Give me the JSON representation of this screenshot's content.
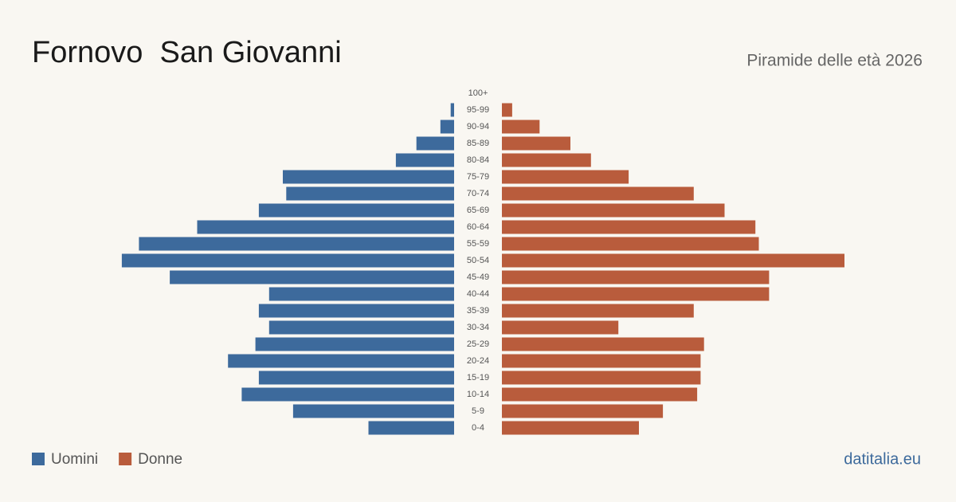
{
  "chart_data": {
    "type": "pyramid",
    "title": "Fornovo  San Giovanni",
    "subtitle": "Piramide delle età 2026",
    "source": "datitalia.eu",
    "categories": [
      "100+",
      "95-99",
      "90-94",
      "85-89",
      "80-84",
      "75-79",
      "70-74",
      "65-69",
      "60-64",
      "55-59",
      "50-54",
      "45-49",
      "40-44",
      "35-39",
      "30-34",
      "25-29",
      "20-24",
      "15-19",
      "10-14",
      "5-9",
      "0-4"
    ],
    "series": [
      {
        "name": "Uomini",
        "color": "#3d6a9c",
        "values": [
          0,
          1,
          4,
          11,
          17,
          50,
          49,
          57,
          75,
          92,
          97,
          83,
          54,
          57,
          54,
          58,
          66,
          57,
          62,
          47,
          25
        ]
      },
      {
        "name": "Donne",
        "color": "#b95c3c",
        "values": [
          0,
          3,
          11,
          20,
          26,
          37,
          56,
          65,
          74,
          75,
          100,
          78,
          78,
          56,
          34,
          59,
          58,
          58,
          57,
          47,
          40
        ]
      }
    ]
  }
}
